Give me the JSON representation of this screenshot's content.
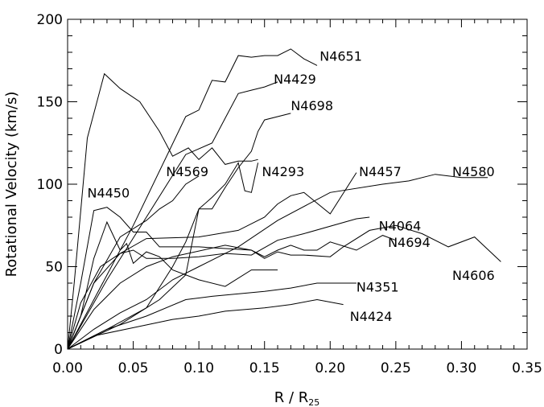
{
  "chart_data": {
    "type": "line",
    "title": "",
    "xlabel": "R / R",
    "xlabel_subscript": "25",
    "ylabel": "Rotational Velocity (km/s)",
    "xlim": [
      0.0,
      0.35
    ],
    "ylim": [
      0,
      200
    ],
    "grid": false,
    "x_ticks": [
      0.0,
      0.05,
      0.1,
      0.15,
      0.2,
      0.25,
      0.3,
      0.35
    ],
    "x_tick_labels": [
      "0.00",
      "0.05",
      "0.10",
      "0.15",
      "0.20",
      "0.25",
      "0.30",
      "0.35"
    ],
    "x_minor_step": 0.01,
    "y_ticks": [
      0,
      50,
      100,
      150,
      200
    ],
    "y_tick_labels": [
      "0",
      "50",
      "100",
      "150",
      "200"
    ],
    "y_minor_step": 10,
    "series": [
      {
        "name": "N4651",
        "label_at": [
          0.192,
          175
        ],
        "x": [
          0,
          0.05,
          0.09,
          0.1,
          0.11,
          0.12,
          0.13,
          0.14,
          0.15,
          0.16,
          0.17,
          0.18,
          0.19
        ],
        "y": [
          0,
          75,
          141,
          145,
          163,
          162,
          178,
          177,
          178,
          178,
          182,
          176,
          172
        ]
      },
      {
        "name": "N4429",
        "label_at": [
          0.157,
          161
        ],
        "x": [
          0,
          0.03,
          0.06,
          0.09,
          0.11,
          0.12,
          0.13,
          0.14,
          0.15,
          0.16
        ],
        "y": [
          0,
          42,
          80,
          118,
          125,
          140,
          155,
          157,
          159,
          162
        ]
      },
      {
        "name": "N4698",
        "label_at": [
          0.17,
          145
        ],
        "x": [
          0,
          0.04,
          0.07,
          0.09,
          0.1,
          0.11,
          0.12,
          0.13,
          0.14,
          0.145,
          0.15,
          0.17
        ],
        "y": [
          0,
          15,
          30,
          45,
          85,
          85,
          98,
          110,
          120,
          132,
          139,
          143
        ]
      },
      {
        "name": "N4450",
        "label_at": [
          0.015,
          92
        ],
        "x": [
          0,
          0.005,
          0.015,
          0.028,
          0.04,
          0.055,
          0.07,
          0.08,
          0.092,
          0.1,
          0.11,
          0.12,
          0.13,
          0.14,
          0.145
        ],
        "y": [
          0,
          40,
          128,
          167,
          158,
          150,
          132,
          117,
          122,
          115,
          122,
          112,
          114,
          114,
          115
        ]
      },
      {
        "name": "N4569",
        "label_at": [
          0.075,
          105
        ],
        "x": [
          0,
          0.02,
          0.04,
          0.06,
          0.07,
          0.08,
          0.09,
          0.1
        ],
        "y": [
          0,
          40,
          68,
          78,
          85,
          90,
          100,
          105
        ]
      },
      {
        "name": "N4293",
        "label_at": [
          0.148,
          105
        ],
        "x": [
          0,
          0.03,
          0.06,
          0.08,
          0.09,
          0.1,
          0.11,
          0.12,
          0.13,
          0.135,
          0.14,
          0.145
        ],
        "y": [
          0,
          12,
          25,
          50,
          65,
          85,
          92,
          100,
          113,
          96,
          95,
          113
        ]
      },
      {
        "name": "N4457",
        "label_at": [
          0.222,
          105
        ],
        "x": [
          0,
          0.02,
          0.04,
          0.06,
          0.1,
          0.13,
          0.15,
          0.16,
          0.17,
          0.18,
          0.2,
          0.22
        ],
        "y": [
          0,
          40,
          58,
          67,
          68,
          72,
          80,
          88,
          93,
          95,
          82,
          107
        ]
      },
      {
        "name": "N4580",
        "label_at": [
          0.293,
          105
        ],
        "x": [
          0,
          0.02,
          0.04,
          0.06,
          0.08,
          0.1,
          0.13,
          0.16,
          0.2,
          0.24,
          0.26,
          0.28,
          0.3,
          0.31,
          0.32
        ],
        "y": [
          0,
          12,
          22,
          30,
          42,
          50,
          62,
          78,
          95,
          100,
          102,
          106,
          104,
          104,
          104
        ]
      },
      {
        "name": "N4064",
        "label_at": [
          0.237,
          72
        ],
        "x": [
          0,
          0.01,
          0.025,
          0.04,
          0.05,
          0.06,
          0.08,
          0.1,
          0.12,
          0.14,
          0.16,
          0.18,
          0.22,
          0.23
        ],
        "y": [
          0,
          28,
          50,
          58,
          60,
          55,
          55,
          56,
          58,
          57,
          66,
          70,
          79,
          80
        ]
      },
      {
        "name": "N4694",
        "label_at": [
          0.244,
          62
        ],
        "x": [
          0,
          0.02,
          0.04,
          0.06,
          0.08,
          0.12,
          0.14,
          0.15,
          0.16,
          0.17,
          0.18,
          0.19,
          0.2,
          0.22,
          0.24,
          0.25
        ],
        "y": [
          0,
          24,
          40,
          50,
          56,
          63,
          60,
          56,
          60,
          63,
          60,
          60,
          65,
          60,
          69,
          66
        ]
      },
      {
        "name": "N4606",
        "label_at": [
          0.293,
          42
        ],
        "x": [
          0,
          0.01,
          0.02,
          0.03,
          0.04,
          0.05,
          0.06,
          0.07,
          0.1,
          0.14,
          0.15,
          0.16,
          0.17,
          0.18,
          0.2,
          0.21,
          0.23,
          0.25,
          0.27,
          0.29,
          0.31,
          0.33
        ],
        "y": [
          0,
          40,
          84,
          86,
          80,
          71,
          71,
          62,
          62,
          60,
          55,
          59,
          57,
          57,
          56,
          62,
          72,
          75,
          70,
          62,
          68,
          53
        ]
      },
      {
        "name": "N4351",
        "label_at": [
          0.22,
          35
        ],
        "x": [
          0,
          0.03,
          0.06,
          0.09,
          0.11,
          0.15,
          0.17,
          0.19,
          0.2,
          0.22
        ],
        "y": [
          0,
          12,
          20,
          30,
          32,
          35,
          37,
          40,
          40,
          40
        ]
      },
      {
        "name": "N4424",
        "label_at": [
          0.215,
          17
        ],
        "x": [
          0,
          0.02,
          0.05,
          0.08,
          0.1,
          0.12,
          0.15,
          0.17,
          0.19,
          0.21
        ],
        "y": [
          0,
          8,
          13,
          18,
          20,
          23,
          25,
          27,
          30,
          27
        ]
      },
      {
        "name": "",
        "x": [
          0,
          0.01,
          0.02,
          0.03,
          0.04,
          0.045,
          0.05,
          0.06,
          0.07,
          0.08,
          0.1,
          0.12,
          0.14,
          0.16
        ],
        "y": [
          0,
          20,
          55,
          77,
          60,
          64,
          52,
          59,
          56,
          48,
          42,
          38,
          48,
          48
        ]
      }
    ]
  }
}
